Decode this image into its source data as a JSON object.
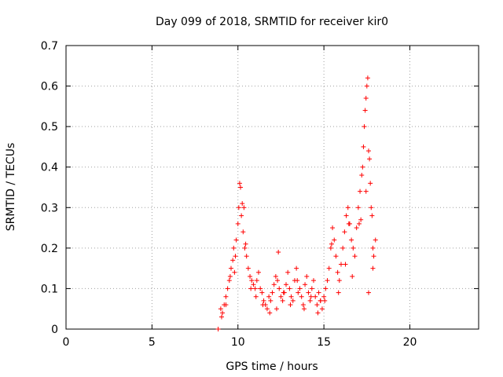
{
  "chart_data": {
    "type": "scatter",
    "title": "Day 099 of 2018, SRMTID for receiver kir0",
    "xlabel": "GPS time / hours",
    "ylabel": "SRMTID / TECUs",
    "xlim": [
      0,
      24
    ],
    "ylim": [
      0,
      0.7
    ],
    "xticks": [
      0,
      5,
      10,
      15,
      20
    ],
    "yticks": [
      0,
      0.1,
      0.2,
      0.3,
      0.4,
      0.5,
      0.6,
      0.7
    ],
    "grid": true,
    "marker": "+",
    "series": [
      {
        "name": "kir0",
        "color": "#ff0000",
        "x": [
          8.85,
          9.0,
          9.1,
          9.2,
          9.3,
          9.4,
          9.5,
          9.6,
          9.7,
          9.75,
          9.8,
          9.9,
          10.0,
          10.05,
          10.1,
          10.15,
          10.2,
          10.3,
          10.35,
          10.4,
          10.5,
          10.6,
          10.7,
          10.8,
          10.9,
          11.0,
          11.1,
          11.2,
          11.3,
          11.4,
          11.5,
          11.6,
          11.7,
          11.8,
          11.9,
          12.0,
          12.1,
          12.2,
          12.3,
          12.4,
          12.5,
          12.6,
          12.7,
          12.8,
          12.9,
          13.0,
          13.1,
          13.2,
          13.3,
          13.4,
          13.5,
          13.6,
          13.7,
          13.8,
          13.9,
          14.0,
          14.1,
          14.2,
          14.3,
          14.4,
          14.5,
          14.6,
          14.7,
          14.8,
          14.9,
          15.0,
          15.1,
          15.2,
          15.3,
          15.4,
          15.5,
          15.6,
          15.7,
          15.8,
          15.9,
          16.0,
          16.1,
          16.2,
          16.3,
          16.4,
          16.5,
          16.6,
          16.7,
          16.8,
          16.9,
          17.0,
          17.1,
          17.2,
          17.25,
          17.3,
          17.35,
          17.4,
          17.45,
          17.5,
          17.55,
          17.6,
          17.65,
          17.7,
          17.75,
          17.8,
          17.85,
          17.9,
          18.0,
          9.05,
          9.3,
          9.55,
          9.85,
          10.25,
          10.45,
          10.75,
          11.05,
          11.45,
          11.85,
          12.25,
          12.65,
          13.05,
          13.45,
          13.85,
          14.25,
          14.65,
          15.05,
          15.45,
          15.85,
          16.25,
          16.65,
          17.05,
          17.45,
          17.85,
          12.35,
          14.8,
          16.45,
          17.15,
          17.6
        ],
        "y": [
          0.0,
          0.05,
          0.04,
          0.06,
          0.08,
          0.1,
          0.12,
          0.15,
          0.17,
          0.2,
          0.14,
          0.22,
          0.26,
          0.3,
          0.36,
          0.35,
          0.28,
          0.24,
          0.3,
          0.2,
          0.18,
          0.15,
          0.13,
          0.12,
          0.11,
          0.1,
          0.12,
          0.14,
          0.1,
          0.09,
          0.07,
          0.06,
          0.05,
          0.08,
          0.07,
          0.09,
          0.11,
          0.13,
          0.12,
          0.1,
          0.08,
          0.07,
          0.09,
          0.11,
          0.14,
          0.1,
          0.08,
          0.07,
          0.12,
          0.15,
          0.09,
          0.1,
          0.08,
          0.06,
          0.11,
          0.13,
          0.09,
          0.07,
          0.1,
          0.12,
          0.08,
          0.06,
          0.09,
          0.07,
          0.05,
          0.08,
          0.1,
          0.12,
          0.15,
          0.2,
          0.25,
          0.22,
          0.18,
          0.14,
          0.12,
          0.16,
          0.2,
          0.24,
          0.28,
          0.3,
          0.26,
          0.22,
          0.2,
          0.18,
          0.25,
          0.3,
          0.34,
          0.38,
          0.4,
          0.45,
          0.5,
          0.54,
          0.57,
          0.6,
          0.62,
          0.44,
          0.42,
          0.36,
          0.3,
          0.28,
          0.2,
          0.18,
          0.22,
          0.03,
          0.06,
          0.13,
          0.18,
          0.31,
          0.21,
          0.1,
          0.08,
          0.06,
          0.04,
          0.05,
          0.09,
          0.06,
          0.12,
          0.05,
          0.08,
          0.04,
          0.07,
          0.21,
          0.09,
          0.16,
          0.13,
          0.26,
          0.34,
          0.15,
          0.19,
          0.07,
          0.26,
          0.27,
          0.09
        ]
      }
    ]
  }
}
